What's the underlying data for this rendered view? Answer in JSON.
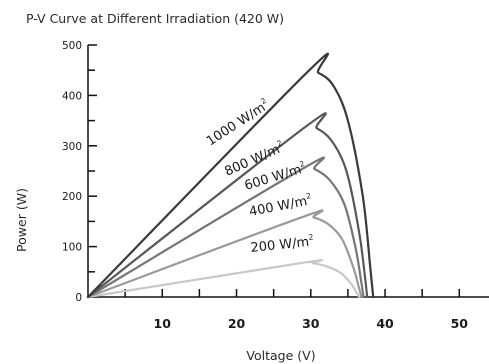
{
  "chart_data": {
    "type": "line",
    "title": "P-V Curve at Different Irradiation (420 W)",
    "xlabel": "Voltage (V)",
    "ylabel": "Power (W)",
    "xlim": [
      0,
      54
    ],
    "ylim": [
      0,
      500
    ],
    "xticks": [
      10,
      20,
      30,
      40,
      50
    ],
    "yticks": [
      0,
      100,
      200,
      300,
      400,
      500
    ],
    "grid": false,
    "legend": "none",
    "series": [
      {
        "name": "1000 W/m²",
        "label_main": "1000 W/m",
        "label_sup": "2",
        "color": "#3a3a3a",
        "points": [
          [
            0,
            0
          ],
          [
            29.8,
            450
          ],
          [
            31,
            445
          ],
          [
            33,
            420
          ],
          [
            35,
            350
          ],
          [
            37,
            200
          ],
          [
            38,
            60
          ],
          [
            38.4,
            0
          ]
        ]
      },
      {
        "name": "800 W/m²",
        "label_main": "800 W/m",
        "label_sup": "2",
        "color": "#585858",
        "points": [
          [
            0,
            0
          ],
          [
            29.5,
            340
          ],
          [
            30.8,
            335
          ],
          [
            32.8,
            310
          ],
          [
            34.8,
            250
          ],
          [
            36.5,
            130
          ],
          [
            37.3,
            40
          ],
          [
            37.6,
            0
          ]
        ]
      },
      {
        "name": "600 W/m²",
        "label_main": "600 W/m",
        "label_sup": "2",
        "color": "#767676",
        "points": [
          [
            0,
            0
          ],
          [
            29.3,
            258
          ],
          [
            30.5,
            254
          ],
          [
            32.5,
            233
          ],
          [
            34.5,
            185
          ],
          [
            36,
            100
          ],
          [
            36.8,
            30
          ],
          [
            37.1,
            0
          ]
        ]
      },
      {
        "name": "400 W/m²",
        "label_main": "400 W/m",
        "label_sup": "2",
        "color": "#9a9a9a",
        "points": [
          [
            0,
            0
          ],
          [
            29.1,
            160
          ],
          [
            30.4,
            158
          ],
          [
            32.3,
            145
          ],
          [
            34.2,
            115
          ],
          [
            35.7,
            60
          ],
          [
            36.5,
            18
          ],
          [
            36.8,
            0
          ]
        ]
      },
      {
        "name": "200 W/m²",
        "label_main": "200 W/m",
        "label_sup": "2",
        "color": "#c8c8c8",
        "points": [
          [
            0,
            0
          ],
          [
            29,
            68
          ],
          [
            30.3,
            67
          ],
          [
            32.1,
            61
          ],
          [
            34,
            48
          ],
          [
            35.5,
            25
          ],
          [
            36.2,
            8
          ],
          [
            36.5,
            0
          ]
        ]
      }
    ]
  }
}
